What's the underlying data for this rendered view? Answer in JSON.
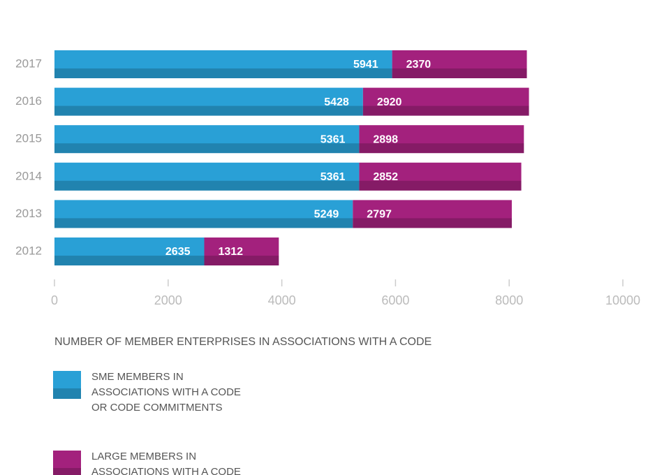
{
  "chart_data": {
    "type": "stacked-barh",
    "categories": [
      "2017",
      "2016",
      "2015",
      "2014",
      "2013",
      "2012"
    ],
    "series": [
      {
        "name": "SME MEMBERS IN ASSOCIATIONS WITH A CODE OR CODE COMMITMENTS",
        "color": "#29a0d6",
        "values": [
          5941,
          5428,
          5361,
          5361,
          5249,
          2635
        ]
      },
      {
        "name": "LARGE MEMBERS IN ASSOCIATIONS WITH A CODE OR CODE COMMITMENTS",
        "color": "#a3217d",
        "values": [
          2370,
          2920,
          2898,
          2852,
          2797,
          1312
        ]
      }
    ],
    "xlim": [
      0,
      10000
    ],
    "xticks": [
      0,
      2000,
      4000,
      6000,
      8000,
      10000
    ],
    "xlabel": "NUMBER OF MEMBER ENTERPRISES IN ASSOCIATIONS WITH A CODE"
  }
}
